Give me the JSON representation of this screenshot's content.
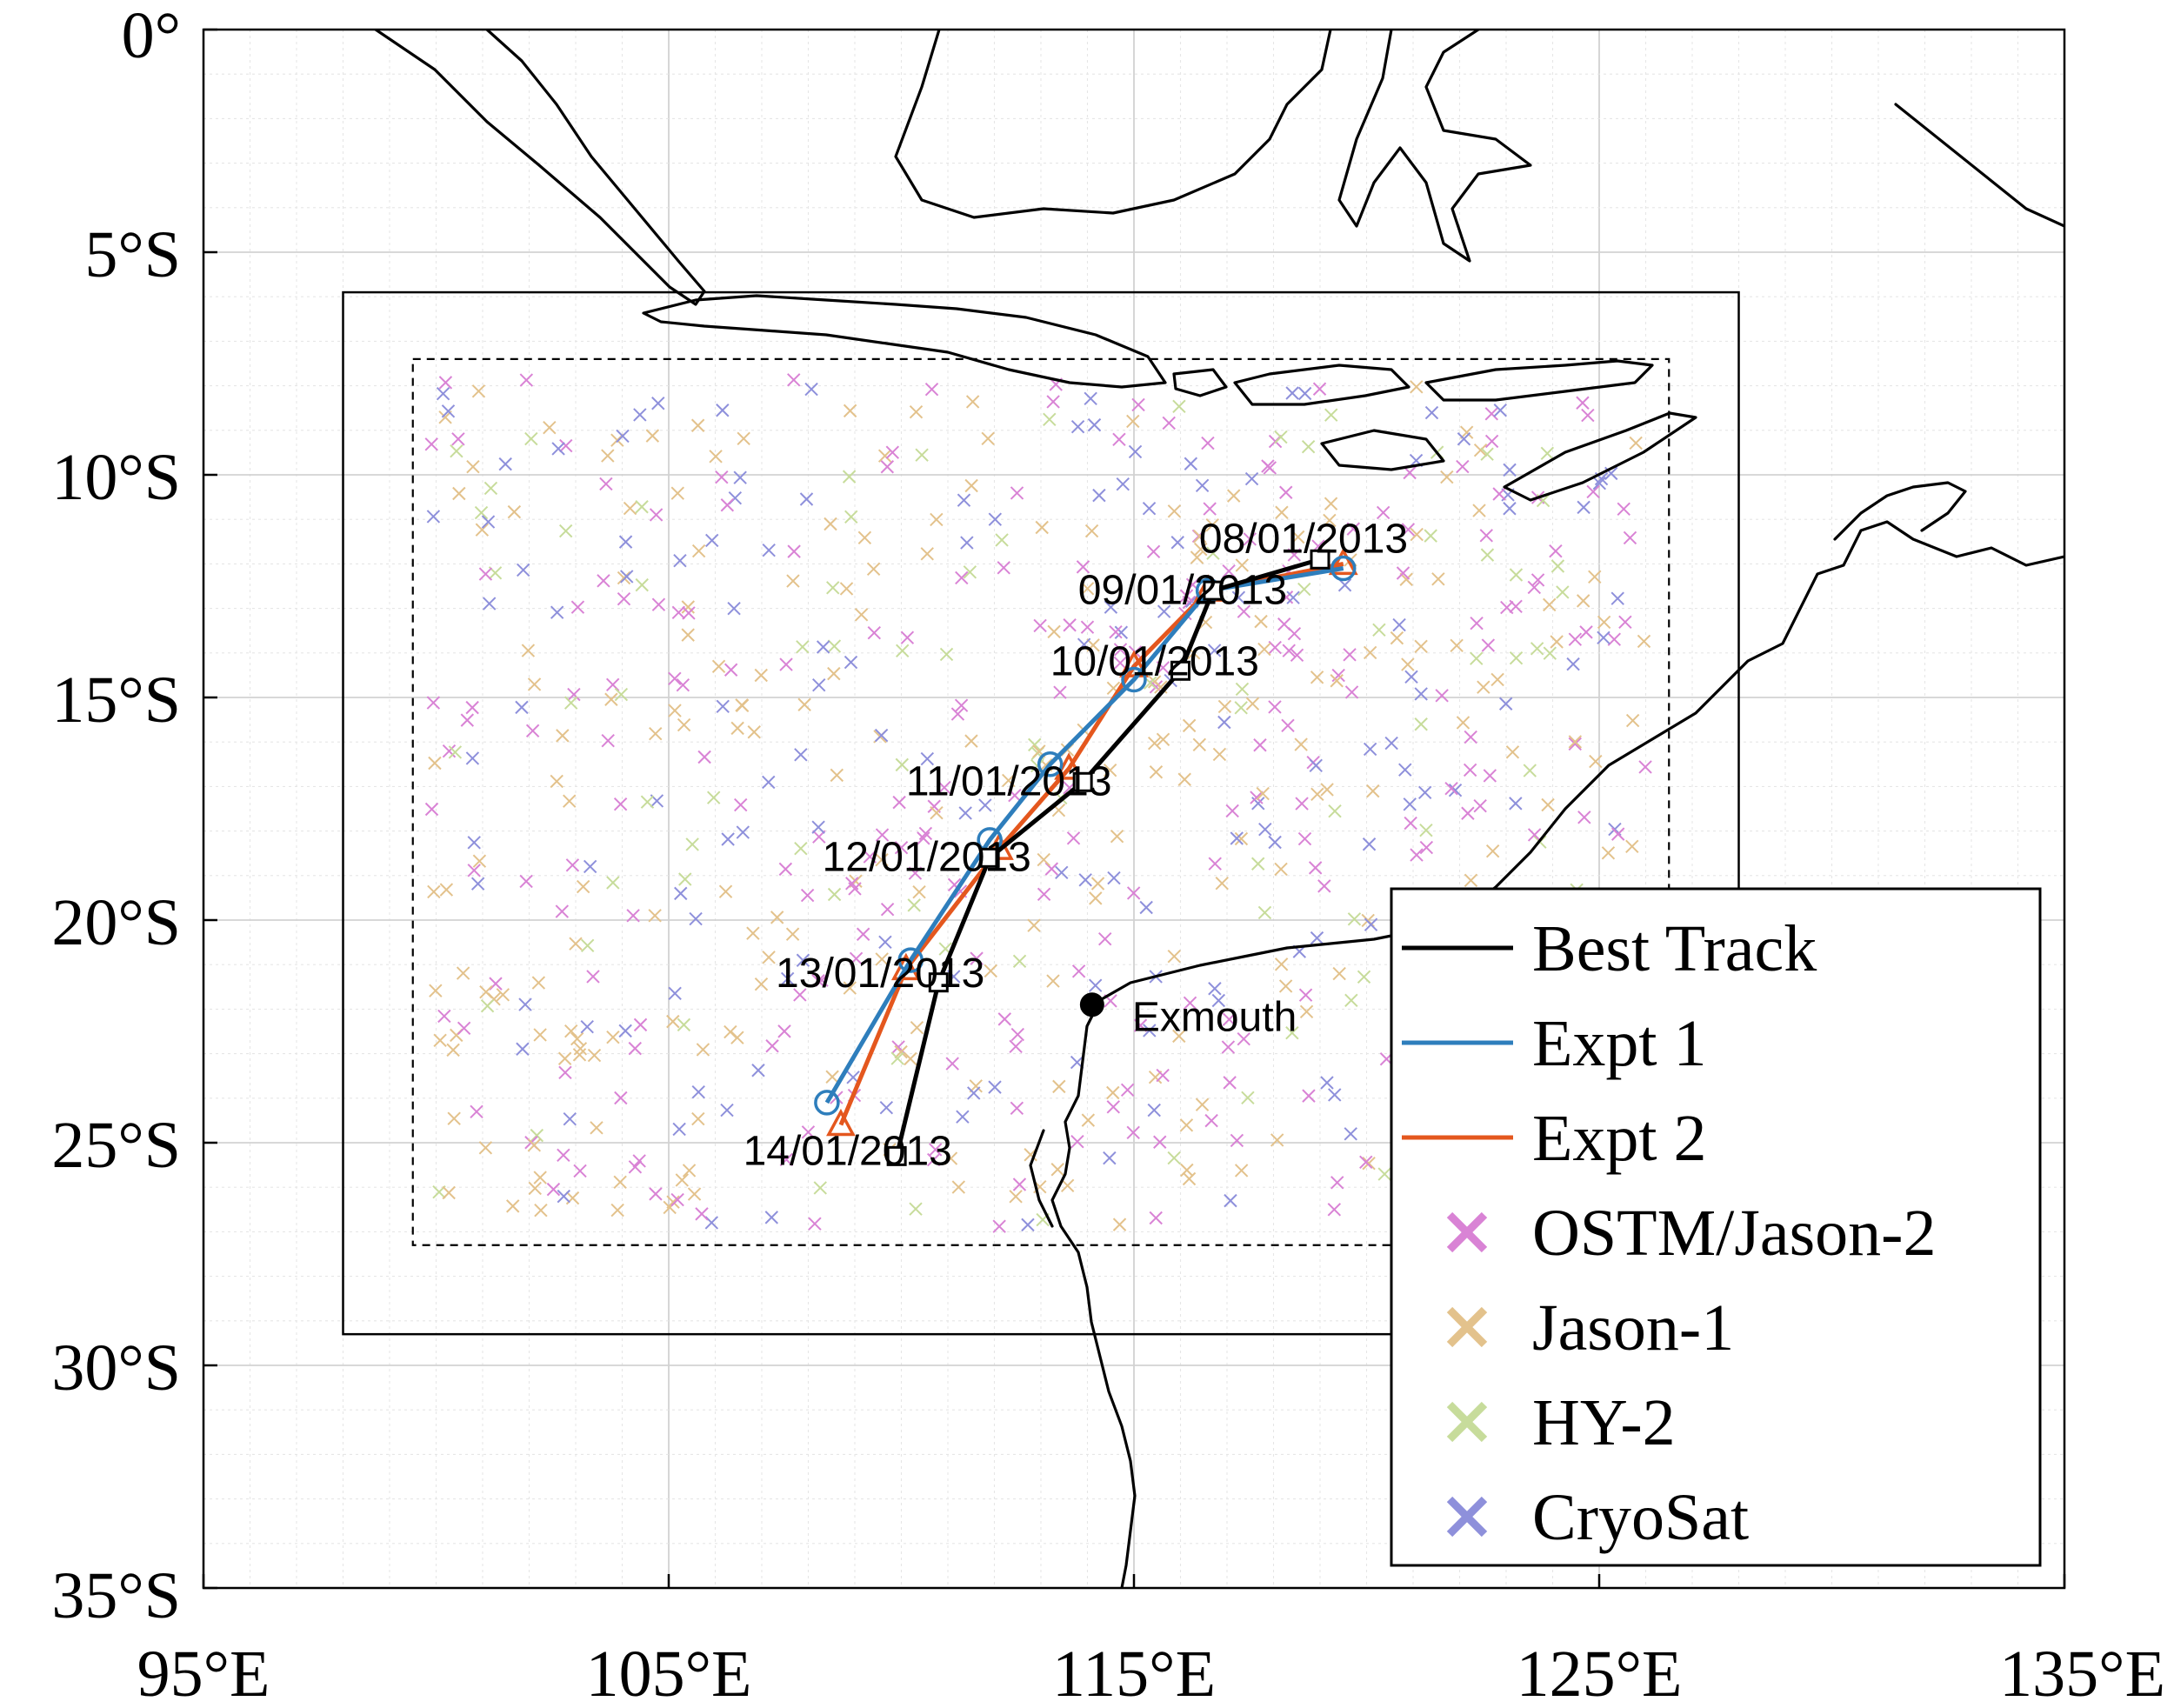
{
  "chart_data": {
    "type": "map",
    "x_ticks": [
      "95°E",
      "105°E",
      "115°E",
      "125°E",
      "135°E"
    ],
    "y_ticks": [
      "0°",
      "5°S",
      "10°S",
      "15°S",
      "20°S",
      "25°S",
      "30°S",
      "35°S"
    ],
    "lon_range": [
      95,
      135
    ],
    "lat_range": [
      -35,
      0
    ],
    "grid": true,
    "outer_domain": {
      "lon": [
        98,
        128
      ],
      "lat": [
        -29.3,
        -5.9
      ]
    },
    "inner_domain": {
      "lon": [
        99.5,
        126.5
      ],
      "lat": [
        -27.3,
        -7.4
      ]
    },
    "series": [
      {
        "name": "Best Track",
        "color": "#000000",
        "marker": "square",
        "points": [
          [
            119.0,
            -11.9
          ],
          [
            116.7,
            -12.6
          ],
          [
            116.0,
            -14.4
          ],
          [
            113.9,
            -16.9
          ],
          [
            111.9,
            -18.6
          ],
          [
            110.8,
            -21.4
          ],
          [
            109.9,
            -25.3
          ]
        ]
      },
      {
        "name": "Expt 1",
        "color": "#2e7ebc",
        "marker": "circle",
        "points": [
          [
            119.5,
            -12.1
          ],
          [
            116.6,
            -12.6
          ],
          [
            115.0,
            -14.6
          ],
          [
            113.2,
            -16.5
          ],
          [
            111.9,
            -18.2
          ],
          [
            110.2,
            -20.9
          ],
          [
            108.4,
            -24.1
          ]
        ]
      },
      {
        "name": "Expt 2",
        "color": "#e4571e",
        "marker": "triangle",
        "points": [
          [
            119.5,
            -12.0
          ],
          [
            116.6,
            -12.6
          ],
          [
            115.0,
            -14.3
          ],
          [
            113.6,
            -16.6
          ],
          [
            112.1,
            -18.4
          ],
          [
            110.1,
            -21.1
          ],
          [
            108.7,
            -24.6
          ]
        ]
      }
    ],
    "date_labels": [
      {
        "text": "08/01/2013",
        "lon": 116.4,
        "lat": -11.75
      },
      {
        "text": "09/01/2013",
        "lon": 113.8,
        "lat": -12.9
      },
      {
        "text": "10/01/2013",
        "lon": 113.2,
        "lat": -14.5
      },
      {
        "text": "11/01/2013",
        "lon": 110.1,
        "lat": -17.2
      },
      {
        "text": "12/01/2013",
        "lon": 108.3,
        "lat": -18.9
      },
      {
        "text": "13/01/2013",
        "lon": 107.3,
        "lat": -21.5
      },
      {
        "text": "14/01/2013",
        "lon": 106.6,
        "lat": -25.5
      }
    ],
    "place": {
      "name": "Exmouth",
      "lon": 114.1,
      "lat": -21.9
    },
    "altimeters": [
      {
        "name": "OSTM/Jason-2",
        "color": "#d983d5"
      },
      {
        "name": "Jason-1",
        "color": "#e3c28c"
      },
      {
        "name": "HY-2",
        "color": "#c7dc9b"
      },
      {
        "name": "CryoSat",
        "color": "#8e90db"
      }
    ]
  },
  "legend": {
    "entries": [
      "Best Track",
      "Expt 1",
      "Expt 2",
      "OSTM/Jason-2",
      "Jason-1",
      "HY-2",
      "CryoSat"
    ]
  }
}
